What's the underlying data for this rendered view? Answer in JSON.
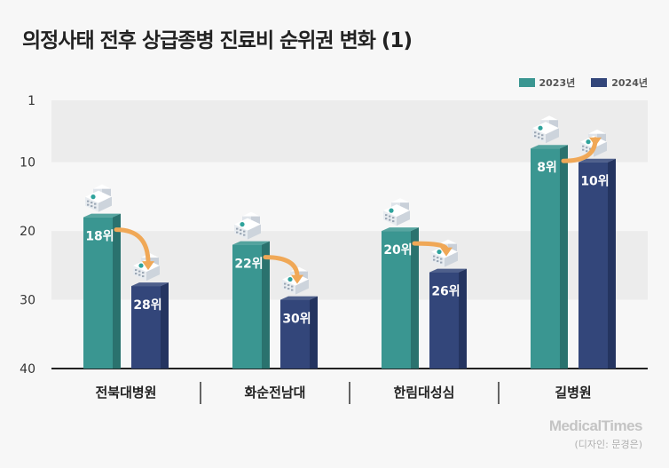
{
  "title": "의정사태 전후 상급종병 진료비 순위권 변화 (1)",
  "brand": "MedicalTimes",
  "credit": "(디자인: 문경은)",
  "colors": {
    "y2023": "#3a9691",
    "y2023_dark": "#2a726e",
    "y2024": "#33467a",
    "y2024_dark": "#243460",
    "arrow": "#f0a857",
    "band": "#ececec",
    "axis": "#222222"
  },
  "chart_data": {
    "type": "bar",
    "categories": [
      "전북대병원",
      "화순전남대",
      "한림대성심",
      "길병원"
    ],
    "series": [
      {
        "name": "2023년",
        "values": [
          18,
          22,
          20,
          8
        ],
        "labels": [
          "18위",
          "22위",
          "20위",
          "8위"
        ]
      },
      {
        "name": "2024년",
        "values": [
          28,
          30,
          26,
          10
        ],
        "labels": [
          "28위",
          "30위",
          "26위",
          "10위"
        ]
      }
    ],
    "yticks": [
      1,
      10,
      20,
      30,
      40
    ],
    "ylim": [
      1,
      40
    ],
    "y_inverted": true,
    "legend_position": "top-right"
  }
}
